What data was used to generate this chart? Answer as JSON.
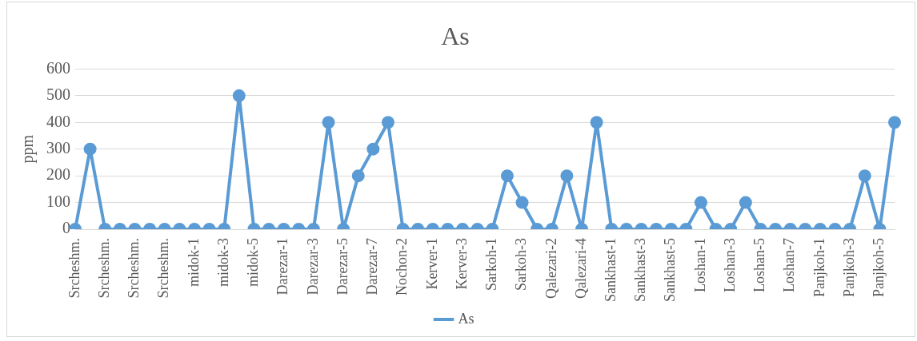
{
  "chart_data": {
    "type": "line",
    "title": "As",
    "ylabel": "ppm",
    "categories": [
      "Srcheshm.",
      null,
      "Srcheshm.",
      null,
      "Srcheshm.",
      null,
      "Srcheshm.",
      null,
      "midok-1",
      null,
      "midok-3",
      null,
      "midok-5",
      null,
      "Darezar-1",
      null,
      "Darezar-3",
      null,
      "Darezar-5",
      null,
      "Darezar-7",
      null,
      "Nochon-2",
      null,
      "Kerver-1",
      null,
      "Kerver-3",
      null,
      "Sarkoh-1",
      null,
      "Sarkoh-3",
      null,
      "Qalezari-2",
      null,
      "Qalezari-4",
      null,
      "Sankhast-1",
      null,
      "Sankhast-3",
      null,
      "Sankhast-5",
      null,
      "Loshan-1",
      null,
      "Loshan-3",
      null,
      "Loshan-5",
      null,
      "Loshan-7",
      null,
      "Panjkoh-1",
      null,
      "Panjkoh-3",
      null,
      "Panjkoh-5",
      null
    ],
    "series": [
      {
        "name": "As",
        "color": "#5b9bd5",
        "values": [
          0,
          300,
          0,
          0,
          0,
          0,
          0,
          0,
          0,
          0,
          0,
          500,
          0,
          0,
          0,
          0,
          0,
          400,
          0,
          200,
          300,
          400,
          0,
          0,
          0,
          0,
          0,
          0,
          0,
          200,
          100,
          0,
          0,
          200,
          0,
          400,
          0,
          0,
          0,
          0,
          0,
          0,
          100,
          0,
          0,
          100,
          0,
          0,
          0,
          0,
          0,
          0,
          0,
          200,
          0,
          400
        ]
      }
    ],
    "ylim": [
      0,
      600
    ],
    "yticks": [
      0,
      100,
      200,
      300,
      400,
      500,
      600
    ],
    "grid": "y",
    "legend": "bottom",
    "marker": "circle",
    "line_style": "solid"
  }
}
